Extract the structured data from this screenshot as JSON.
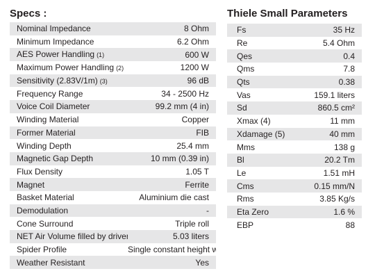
{
  "specs": {
    "title": "Specs :",
    "rows": [
      {
        "label": "Nominal Impedance",
        "note": "",
        "value": "8 Ohm"
      },
      {
        "label": "Minimum Impedance",
        "note": "",
        "value": "6.2 Ohm"
      },
      {
        "label": "AES Power Handling",
        "note": "(1)",
        "value": "600 W"
      },
      {
        "label": "Maximum Power Handling",
        "note": "(2)",
        "value": "1200 W"
      },
      {
        "label": "Sensitivity (2.83V/1m)",
        "note": "(3)",
        "value": "96 dB"
      },
      {
        "label": "Frequency Range",
        "note": "",
        "value": "34 - 2500 Hz"
      },
      {
        "label": "Voice Coil Diameter",
        "note": "",
        "value": "99.2 mm (4 in)"
      },
      {
        "label": "Winding Material",
        "note": "",
        "value": "Copper"
      },
      {
        "label": "Former Material",
        "note": "",
        "value": "FIB"
      },
      {
        "label": "Winding Depth",
        "note": "",
        "value": "25.4 mm"
      },
      {
        "label": "Magnetic Gap Depth",
        "note": "",
        "value": "10 mm (0.39 in)"
      },
      {
        "label": "Flux Density",
        "note": "",
        "value": "1.05 T"
      },
      {
        "label": "Magnet",
        "note": "",
        "value": "Ferrite"
      },
      {
        "label": "Basket Material",
        "note": "",
        "value": "Aluminium die cast"
      },
      {
        "label": "Demodulation",
        "note": "",
        "value": "-"
      },
      {
        "label": "Cone Surround",
        "note": "",
        "value": "Triple roll"
      },
      {
        "label": "NET Air Volume filled by driver",
        "note": "",
        "value": "5.03 liters"
      },
      {
        "label": "Spider Profile",
        "note": "",
        "value": "Single constant height waves"
      },
      {
        "label": "Weather Resistant",
        "note": "",
        "value": "Yes"
      }
    ]
  },
  "thiele_small": {
    "title": "Thiele Small Parameters",
    "rows": [
      {
        "label": "Fs",
        "value": "35 Hz"
      },
      {
        "label": "Re",
        "value": "5.4 Ohm"
      },
      {
        "label": "Qes",
        "value": "0.4"
      },
      {
        "label": "Qms",
        "value": "7.8"
      },
      {
        "label": "Qts",
        "value": "0.38"
      },
      {
        "label": "Vas",
        "value": "159.1 liters"
      },
      {
        "label": "Sd",
        "value": "860.5 cm²"
      },
      {
        "label": "Xmax (4)",
        "value": "11 mm"
      },
      {
        "label": "Xdamage (5)",
        "value": "40 mm"
      },
      {
        "label": "Mms",
        "value": "138 g"
      },
      {
        "label": "Bl",
        "value": "20.2 Tm"
      },
      {
        "label": "Le",
        "value": "1.51 mH"
      },
      {
        "label": "Cms",
        "value": "0.15 mm/N"
      },
      {
        "label": "Rms",
        "value": "3.85 Kg/s"
      },
      {
        "label": "Eta Zero",
        "value": "1.6 %"
      },
      {
        "label": "EBP",
        "value": "88"
      }
    ]
  },
  "colors": {
    "row_shade": "#e6e6e7",
    "text": "#231f20",
    "background": "#ffffff"
  }
}
